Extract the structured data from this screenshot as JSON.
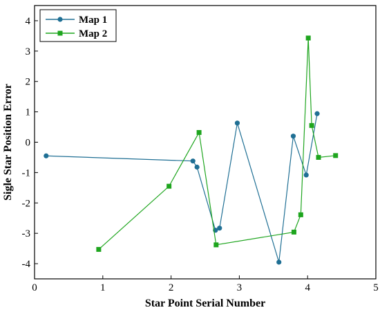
{
  "chart_data": {
    "type": "line",
    "xlabel": "Star Point Serial Number",
    "ylabel": "Sigle Star Position Error",
    "xlim": [
      0,
      5
    ],
    "ylim": [
      -4.5,
      4.5
    ],
    "xticks": [
      "0",
      "1",
      "2",
      "3",
      "4",
      "5"
    ],
    "yticks": [
      "-4",
      "-3",
      "-2",
      "-1",
      "0",
      "1",
      "2",
      "3",
      "4"
    ],
    "grid": false,
    "legend": "top-left",
    "series": [
      {
        "name": "Map 1",
        "color": "#1f6f94",
        "marker": "circle",
        "x": [
          0.17,
          2.32,
          2.38,
          2.65,
          2.71,
          2.97,
          3.58,
          3.79,
          3.98,
          4.14
        ],
        "y": [
          -0.45,
          -0.62,
          -0.82,
          -2.9,
          -2.83,
          0.63,
          -3.95,
          0.2,
          -1.08,
          0.94
        ]
      },
      {
        "name": "Map 2",
        "color": "#1ea51e",
        "marker": "square",
        "x": [
          0.94,
          1.97,
          2.41,
          2.66,
          3.8,
          3.9,
          4.01,
          4.06,
          4.16,
          4.41
        ],
        "y": [
          -3.53,
          -1.45,
          0.32,
          -3.38,
          -2.96,
          -2.39,
          3.43,
          0.55,
          -0.5,
          -0.44
        ]
      }
    ]
  }
}
